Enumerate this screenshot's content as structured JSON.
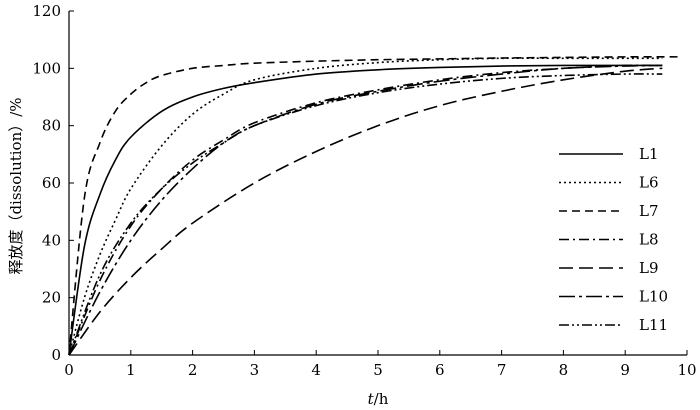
{
  "chart_data": {
    "type": "line",
    "title": "",
    "xlabel": {
      "italic": "t",
      "rest": "/h"
    },
    "ylabel": "释放度（dissolution）/%",
    "xlim": [
      0,
      10
    ],
    "ylim": [
      0,
      120
    ],
    "x_ticks": [
      "0",
      "1",
      "2",
      "3",
      "4",
      "5",
      "6",
      "7",
      "8",
      "9",
      "10"
    ],
    "y_ticks": [
      "0",
      "20",
      "40",
      "60",
      "80",
      "100",
      "120"
    ],
    "grid": false,
    "legend_position": "right",
    "series": [
      {
        "name": "L1",
        "dash": "solid",
        "x": [
          0,
          0.25,
          0.5,
          0.75,
          1,
          1.5,
          2,
          2.5,
          3,
          4,
          5,
          6,
          7,
          8,
          9,
          9.6
        ],
        "y": [
          0,
          38,
          56,
          68,
          76,
          85,
          90,
          93,
          95,
          98,
          99.5,
          100.3,
          100.8,
          101,
          101,
          101
        ]
      },
      {
        "name": "L6",
        "dash": "dotted",
        "x": [
          0,
          0.25,
          0.5,
          0.75,
          1,
          1.5,
          2,
          2.5,
          3,
          4,
          5,
          6,
          7,
          8,
          9,
          9.6
        ],
        "y": [
          0,
          20,
          35,
          47,
          58,
          73,
          84,
          91,
          96,
          100,
          102,
          103,
          103.5,
          103.5,
          103.5,
          103.5
        ]
      },
      {
        "name": "L7",
        "dash": "dashed",
        "x": [
          0,
          0.25,
          0.5,
          0.75,
          1,
          1.25,
          1.5,
          2,
          2.5,
          3,
          4,
          5,
          6,
          7,
          8,
          9,
          9.9
        ],
        "y": [
          0,
          55,
          74,
          85,
          91,
          95,
          97.5,
          100,
          101,
          101.8,
          102.5,
          103,
          103.3,
          103.6,
          103.8,
          104,
          104
        ]
      },
      {
        "name": "L8",
        "dash": "dash-dot",
        "x": [
          0,
          0.5,
          1,
          1.5,
          2,
          2.5,
          3,
          4,
          5,
          6,
          7,
          8,
          9,
          9.6
        ],
        "y": [
          0,
          26,
          45,
          58,
          68,
          75,
          81,
          88,
          92.5,
          96,
          98.5,
          100,
          101,
          101
        ]
      },
      {
        "name": "L9",
        "dash": "long-dash",
        "x": [
          0,
          0.5,
          1,
          1.5,
          2,
          3,
          4,
          5,
          6,
          7,
          8,
          9,
          9.6
        ],
        "y": [
          0,
          15,
          27,
          37,
          46,
          60,
          71,
          80,
          87,
          92,
          96,
          99,
          100
        ]
      },
      {
        "name": "L10",
        "dash": "long-dash-dot",
        "x": [
          0,
          0.5,
          1,
          1.5,
          2,
          2.5,
          3,
          4,
          5,
          6,
          7,
          8,
          9,
          9.6
        ],
        "y": [
          0,
          22,
          40,
          54,
          65,
          74,
          80,
          87.5,
          92,
          95.5,
          98,
          100,
          100.8,
          101
        ]
      },
      {
        "name": "L11",
        "dash": "dash-dot-dot",
        "x": [
          0,
          0.5,
          1,
          1.5,
          2,
          2.5,
          3,
          4,
          5,
          6,
          7,
          8,
          9,
          9.6
        ],
        "y": [
          0,
          28,
          46,
          58,
          67,
          74,
          80,
          87,
          91.5,
          94.5,
          96.5,
          97.5,
          98,
          98
        ]
      }
    ],
    "dash_patterns": {
      "solid": "",
      "dotted": "2 3",
      "dashed": "8 5",
      "dash-dot": "10 4 2 4",
      "long-dash": "14 6",
      "long-dash-dot": "16 4 3 4",
      "dash-dot-dot": "10 3 2 3 2 3"
    }
  }
}
